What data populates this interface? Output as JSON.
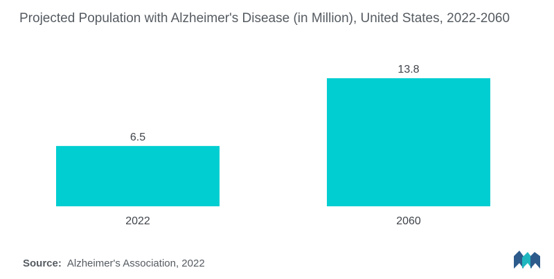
{
  "chart_data": {
    "type": "bar",
    "title": "Projected Population with Alzheimer's Disease (in Million), United States, 2022-2060",
    "categories": [
      "2022",
      "2060"
    ],
    "values": [
      6.5,
      13.8
    ],
    "data_labels": [
      "6.5",
      "13.8"
    ],
    "xlabel": "",
    "ylabel": "",
    "ylim": [
      0,
      13.8
    ],
    "grid": false,
    "legend": "none",
    "bar_color": "#00ced1"
  },
  "source": {
    "label": "Source:",
    "text": "Alzheimer's Association, 2022"
  },
  "logo": {
    "icon": "mordor-intelligence-logo",
    "colors": [
      "#2d5b8c",
      "#1fb6bf"
    ]
  }
}
